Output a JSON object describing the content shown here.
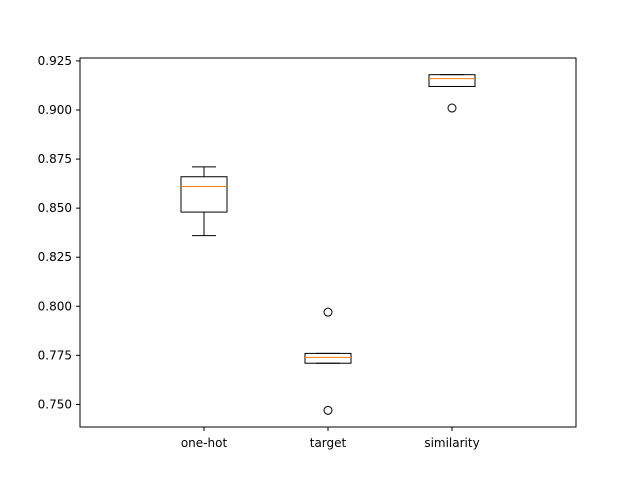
{
  "chart_data": {
    "type": "boxplot",
    "title": "",
    "xlabel": "",
    "ylabel": "",
    "categories": [
      "one-hot",
      "target",
      "similarity"
    ],
    "ylim": [
      0.7385,
      0.9265
    ],
    "yticks": [
      0.75,
      0.775,
      0.8,
      0.825,
      0.85,
      0.875,
      0.9,
      0.925
    ],
    "ytick_labels": [
      "0.750",
      "0.775",
      "0.800",
      "0.825",
      "0.850",
      "0.875",
      "0.900",
      "0.925"
    ],
    "grid": false,
    "boxes": [
      {
        "whisker_low": 0.836,
        "q1": 0.848,
        "median": 0.861,
        "q3": 0.866,
        "whisker_high": 0.871,
        "outliers": []
      },
      {
        "whisker_low": 0.771,
        "q1": 0.771,
        "median": 0.774,
        "q3": 0.776,
        "whisker_high": 0.776,
        "outliers": [
          0.797,
          0.747
        ]
      },
      {
        "whisker_low": 0.912,
        "q1": 0.912,
        "median": 0.916,
        "q3": 0.918,
        "whisker_high": 0.918,
        "outliers": [
          0.901
        ]
      }
    ],
    "colors": {
      "box": "#000000",
      "median": "#ff7f0e",
      "axes": "#000000"
    }
  }
}
